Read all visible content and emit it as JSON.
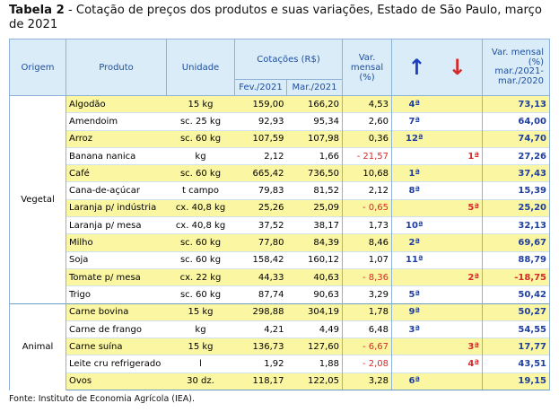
{
  "title": {
    "bold": "Tabela 2",
    "text": " - Cotação de preços dos produtos e suas variações, Estado de São Paulo, março de 2021"
  },
  "header": {
    "origem": "Origem",
    "produto": "Produto",
    "unidade": "Unidade",
    "cotacoes": "Cotações (R$)",
    "fev": "Fev./2021",
    "mar": "Mar./2021",
    "var_mensal": "Var. mensal (%)",
    "up_arrow": "↑",
    "down_arrow": "↓",
    "var_anual": "Var. mensal (%) mar./2021- mar./2020"
  },
  "groups": [
    {
      "origem": "Vegetal",
      "rows": [
        {
          "produto": "Algodão",
          "unidade": "15 kg",
          "fev": "159,00",
          "mar": "166,20",
          "var": "4,53",
          "up": "4ª",
          "down": "",
          "anual": "73,13",
          "y": true
        },
        {
          "produto": "Amendoim",
          "unidade": "sc. 25 kg",
          "fev": "92,93",
          "mar": "95,34",
          "var": "2,60",
          "up": "7ª",
          "down": "",
          "anual": "64,00",
          "y": false
        },
        {
          "produto": "Arroz",
          "unidade": "sc. 60 kg",
          "fev": "107,59",
          "mar": "107,98",
          "var": "0,36",
          "up": "12ª",
          "down": "",
          "anual": "74,70",
          "y": true
        },
        {
          "produto": "Banana nanica",
          "unidade": "kg",
          "fev": "2,12",
          "mar": "1,66",
          "var": "- 21,57",
          "up": "",
          "down": "1ª",
          "anual": "27,26",
          "y": false
        },
        {
          "produto": "Café",
          "unidade": "sc. 60 kg",
          "fev": "665,42",
          "mar": "736,50",
          "var": "10,68",
          "up": "1ª",
          "down": "",
          "anual": "37,43",
          "y": true
        },
        {
          "produto": "Cana-de-açúcar",
          "unidade": "t campo",
          "fev": "79,83",
          "mar": "81,52",
          "var": "2,12",
          "up": "8ª",
          "down": "",
          "anual": "15,39",
          "y": false
        },
        {
          "produto": "Laranja p/ indústria",
          "unidade": "cx. 40,8 kg",
          "fev": "25,26",
          "mar": "25,09",
          "var": "- 0,65",
          "up": "",
          "down": "5ª",
          "anual": "25,20",
          "y": true
        },
        {
          "produto": "Laranja p/ mesa",
          "unidade": "cx. 40,8 kg",
          "fev": "37,52",
          "mar": "38,17",
          "var": "1,73",
          "up": "10ª",
          "down": "",
          "anual": "32,13",
          "y": false
        },
        {
          "produto": "Milho",
          "unidade": "sc. 60 kg",
          "fev": "77,80",
          "mar": "84,39",
          "var": "8,46",
          "up": "2ª",
          "down": "",
          "anual": "69,67",
          "y": true
        },
        {
          "produto": "Soja",
          "unidade": "sc. 60 kg",
          "fev": "158,42",
          "mar": "160,12",
          "var": "1,07",
          "up": "11ª",
          "down": "",
          "anual": "88,79",
          "y": false
        },
        {
          "produto": "Tomate p/ mesa",
          "unidade": "cx. 22 kg",
          "fev": "44,33",
          "mar": "40,63",
          "var": "- 8,36",
          "up": "",
          "down": "2ª",
          "anual": "-18,75",
          "y": true
        },
        {
          "produto": "Trigo",
          "unidade": "sc. 60 kg",
          "fev": "87,74",
          "mar": "90,63",
          "var": "3,29",
          "up": "5ª",
          "down": "",
          "anual": "50,42",
          "y": false
        }
      ]
    },
    {
      "origem": "Animal",
      "rows": [
        {
          "produto": "Carne bovina",
          "unidade": "15 kg",
          "fev": "298,88",
          "mar": "304,19",
          "var": "1,78",
          "up": "9ª",
          "down": "",
          "anual": "50,27",
          "y": true
        },
        {
          "produto": "Carne de frango",
          "unidade": "kg",
          "fev": "4,21",
          "mar": "4,49",
          "var": "6,48",
          "up": "3ª",
          "down": "",
          "anual": "54,55",
          "y": false
        },
        {
          "produto": "Carne suína",
          "unidade": "15 kg",
          "fev": "136,73",
          "mar": "127,60",
          "var": "- 6,67",
          "up": "",
          "down": "3ª",
          "anual": "17,77",
          "y": true
        },
        {
          "produto": "Leite cru refrigerado",
          "unidade": "l",
          "fev": "1,92",
          "mar": "1,88",
          "var": "- 2,08",
          "up": "",
          "down": "4ª",
          "anual": "43,51",
          "y": false
        },
        {
          "produto": "Ovos",
          "unidade": "30 dz.",
          "fev": "118,17",
          "mar": "122,05",
          "var": "3,28",
          "up": "6ª",
          "down": "",
          "anual": "19,15",
          "y": true
        }
      ]
    }
  ],
  "footer": "Fonte: Instituto de Economia Agrícola (IEA).",
  "colors": {
    "highlight": "#fbf6a1",
    "header_bg": "#d9ecf7",
    "header_text": "#1f4fa0",
    "up": "#1a3fc2",
    "down": "#d52a2a"
  }
}
